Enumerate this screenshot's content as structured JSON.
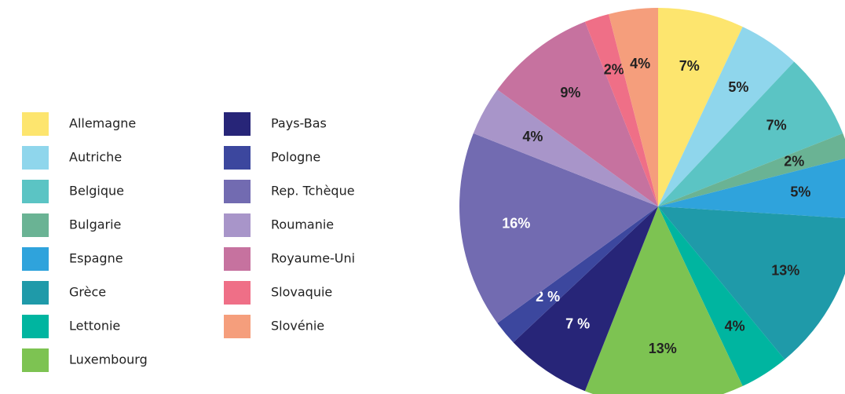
{
  "chart_data": {
    "type": "pie",
    "categories": [
      "Allemagne",
      "Autriche",
      "Belgique",
      "Bulgarie",
      "Espagne",
      "Grèce",
      "Lettonie",
      "Luxembourg",
      "Pays-Bas",
      "Pologne",
      "Rep. Tchèque",
      "Roumanie",
      "Royaume-Uni",
      "Slovaquie",
      "Slovénie"
    ],
    "values": [
      7,
      5,
      7,
      2,
      5,
      13,
      4,
      13,
      7,
      2,
      16,
      4,
      9,
      2,
      4
    ],
    "value_labels": [
      "7%",
      "5%",
      "7%",
      "2%",
      "5%",
      "13%",
      "4%",
      "13%",
      "7 %",
      "2 %",
      "16%",
      "4%",
      "9%",
      "2%",
      "4%"
    ],
    "colors": [
      "#fde56e",
      "#8fd6ec",
      "#5bc4c4",
      "#6ab394",
      "#2fa3dc",
      "#1f9aa9",
      "#00b5a0",
      "#7dc352",
      "#272578",
      "#3c479e",
      "#726bb1",
      "#a895c9",
      "#c6729f",
      "#ef6f87",
      "#f59e7c"
    ],
    "label_colors": [
      "#222",
      "#222",
      "#222",
      "#222",
      "#222",
      "#222",
      "#222",
      "#222",
      "#fff",
      "#fff",
      "#fff",
      "#222",
      "#222",
      "#222",
      "#222"
    ],
    "legend": "left"
  }
}
